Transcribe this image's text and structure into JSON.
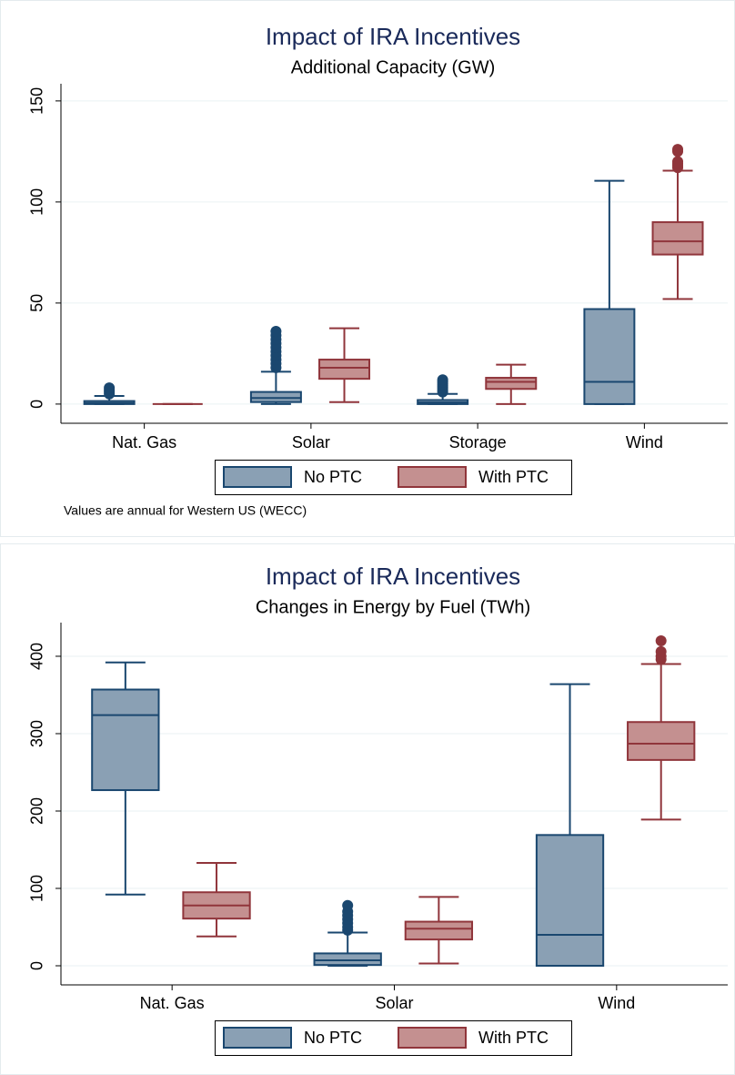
{
  "chart_data": [
    {
      "type": "box",
      "title": "Impact of IRA Incentives",
      "subtitle": "Additional Capacity (GW)",
      "note": "Values are annual for Western US (WECC)",
      "categories": [
        "Nat. Gas",
        "Solar",
        "Storage",
        "Wind"
      ],
      "ylim": [
        -9.5,
        158.5
      ],
      "yticks": [
        0,
        50,
        100,
        150
      ],
      "grid": true,
      "series": [
        {
          "name": "No PTC",
          "color": "#8aa0b4",
          "stroke": "#1a476f",
          "values": [
            {
              "min": 0,
              "q1": 0,
              "median": 0.5,
              "q3": 1.5,
              "max": 4,
              "outliers": [
                5,
                6,
                7,
                8
              ]
            },
            {
              "min": 0,
              "q1": 1,
              "median": 3,
              "q3": 6,
              "max": 16,
              "outliers": [
                18,
                20,
                22,
                24,
                26,
                28,
                30,
                32,
                34,
                36
              ]
            },
            {
              "min": 0,
              "q1": 0,
              "median": 0.8,
              "q3": 2,
              "max": 5,
              "outliers": [
                6,
                7,
                8,
                9,
                10,
                11,
                12
              ]
            },
            {
              "min": 0,
              "q1": 0,
              "median": 11,
              "q3": 47,
              "max": 110.5,
              "outliers": []
            }
          ]
        },
        {
          "name": "With PTC",
          "color": "#c49090",
          "stroke": "#90353b",
          "values": [
            {
              "min": 0,
              "q1": 0,
              "median": 0,
              "q3": 0,
              "max": 0,
              "outliers": []
            },
            {
              "min": 1,
              "q1": 12.5,
              "median": 18,
              "q3": 22,
              "max": 37.5,
              "outliers": []
            },
            {
              "min": 0,
              "q1": 7.5,
              "median": 11,
              "q3": 13,
              "max": 19.5,
              "outliers": []
            },
            {
              "min": 52,
              "q1": 74,
              "median": 80.5,
              "q3": 90,
              "max": 115.5,
              "outliers": [
                117,
                118,
                119,
                120,
                125,
                126
              ]
            }
          ]
        }
      ]
    },
    {
      "type": "box",
      "title": "Impact of IRA Incentives",
      "subtitle": "Changes in Energy by Fuel (TWh)",
      "categories": [
        "Nat. Gas",
        "Solar",
        "Wind"
      ],
      "ylim": [
        -24.7,
        443.5
      ],
      "yticks": [
        0,
        100,
        200,
        300,
        400
      ],
      "grid": true,
      "series": [
        {
          "name": "No PTC",
          "color": "#8aa0b4",
          "stroke": "#1a476f",
          "values": [
            {
              "min": 92,
              "q1": 227,
              "median": 324,
              "q3": 357,
              "max": 392,
              "outliers": []
            },
            {
              "min": 0,
              "q1": 1,
              "median": 7,
              "q3": 16,
              "max": 43,
              "outliers": [
                46,
                50,
                55,
                60,
                65,
                70,
                78
              ]
            },
            {
              "min": 0,
              "q1": 0,
              "median": 40,
              "q3": 169,
              "max": 364,
              "outliers": []
            }
          ]
        },
        {
          "name": "With PTC",
          "color": "#c49090",
          "stroke": "#90353b",
          "values": [
            {
              "min": 38,
              "q1": 61,
              "median": 78,
              "q3": 95,
              "max": 133,
              "outliers": []
            },
            {
              "min": 3,
              "q1": 34,
              "median": 48,
              "q3": 57,
              "max": 89,
              "outliers": []
            },
            {
              "min": 189,
              "q1": 266,
              "median": 287,
              "q3": 315,
              "max": 390,
              "outliers": [
                396,
                400,
                406,
                420
              ]
            }
          ]
        }
      ]
    }
  ]
}
